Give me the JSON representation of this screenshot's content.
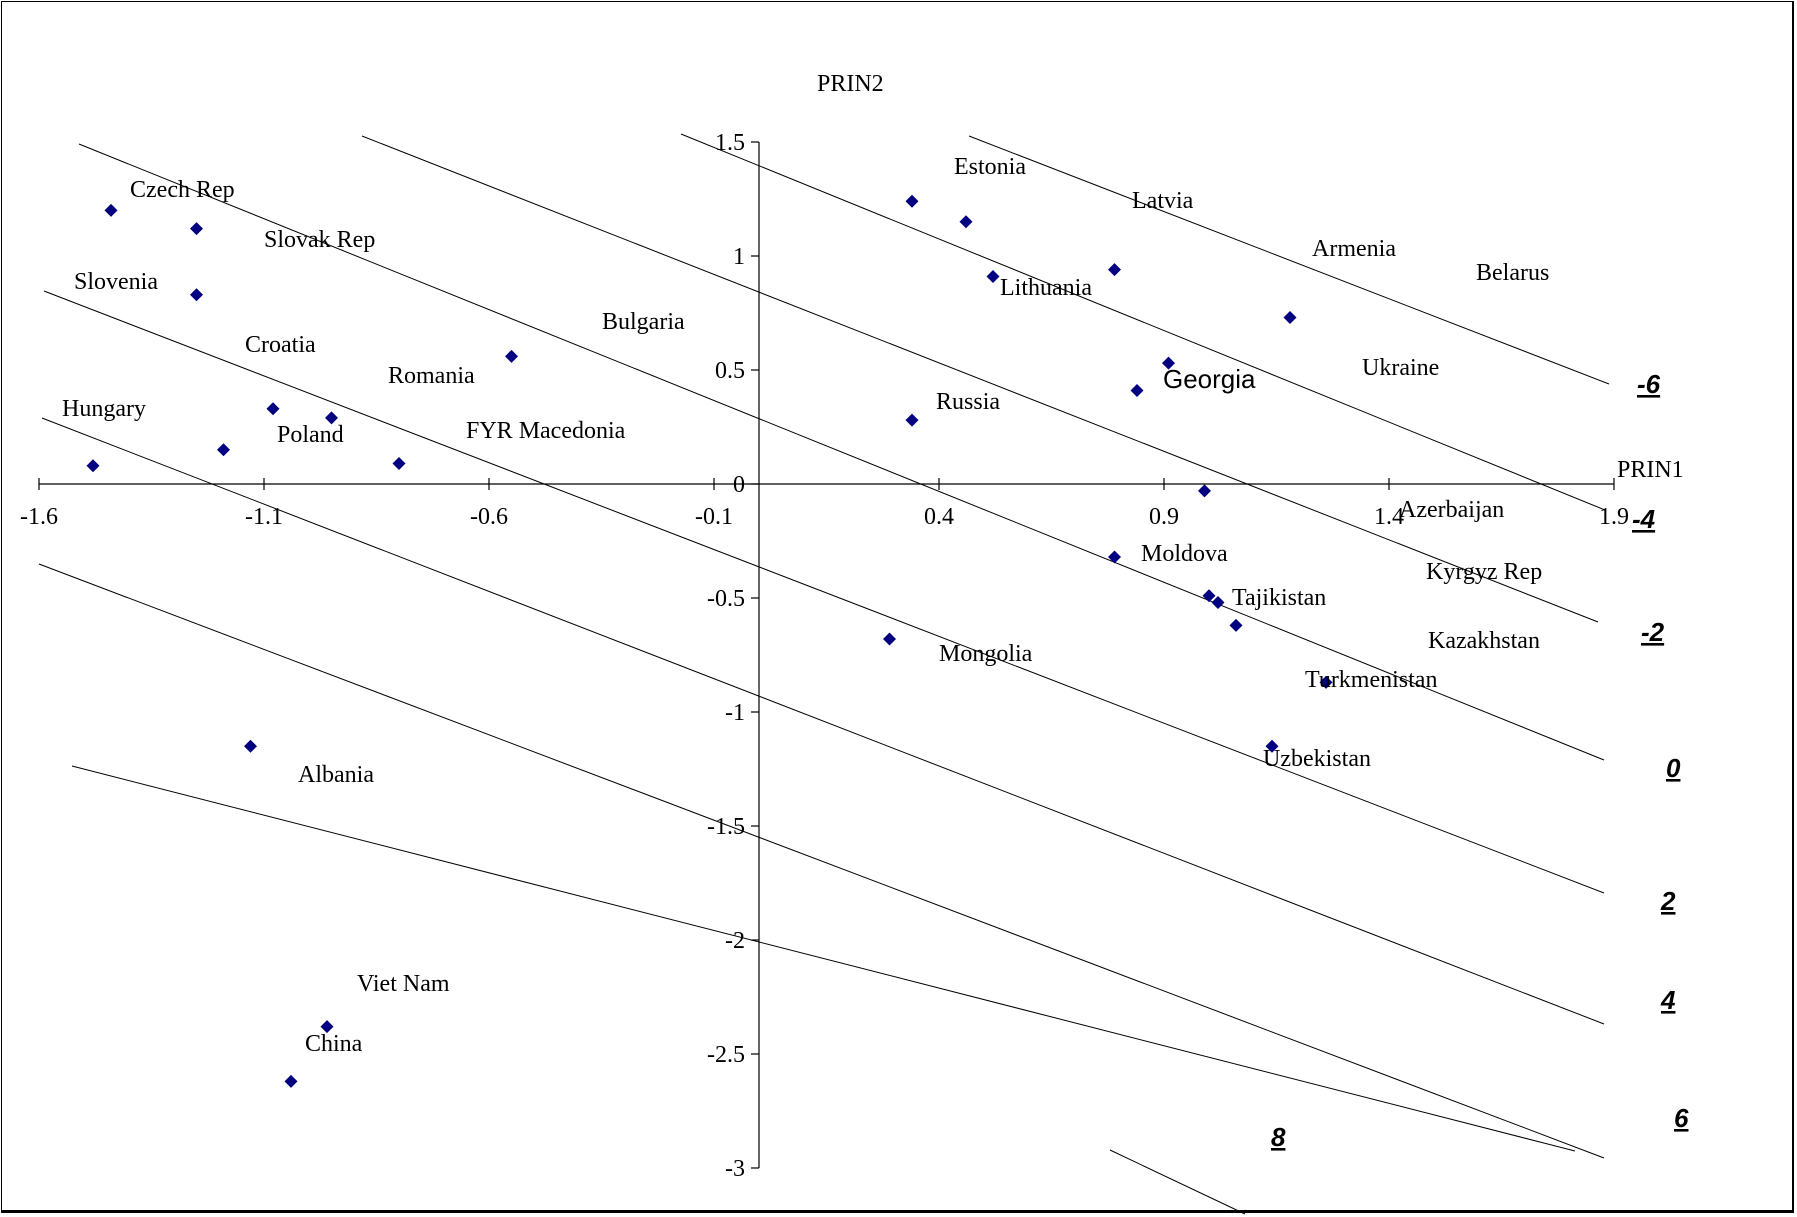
{
  "chart_data": {
    "type": "scatter",
    "x_axis_title": "PRIN1",
    "y_axis_title": "PRIN2",
    "xlim": [
      -1.6,
      1.9
    ],
    "ylim": [
      -3,
      1.5
    ],
    "x_ticks": [
      "-1.6",
      "-1.1",
      "-0.6",
      "-0.1",
      "0.4",
      "0.9",
      "1.4",
      "1.9"
    ],
    "y_ticks": [
      "1.5",
      "1",
      "0.5",
      "0",
      "-0.5",
      "-1",
      "-1.5",
      "-2",
      "-2.5",
      "-3"
    ],
    "marker_color": "#000080",
    "points": [
      {
        "label": "Czech Rep",
        "x": -1.44,
        "y": 1.2
      },
      {
        "label": "Slovak Rep",
        "x": -1.25,
        "y": 1.12
      },
      {
        "label": "Slovenia",
        "x": -1.25,
        "y": 0.83
      },
      {
        "label": "Croatia",
        "x": -1.08,
        "y": 0.33
      },
      {
        "label": "Hungary",
        "x": -1.48,
        "y": 0.08
      },
      {
        "label": "Poland",
        "x": -1.19,
        "y": 0.15
      },
      {
        "label": "Romania",
        "x": -0.95,
        "y": 0.29
      },
      {
        "label": "Bulgaria",
        "x": -0.55,
        "y": 0.56
      },
      {
        "label": "FYR Macedonia",
        "x": -0.8,
        "y": 0.09
      },
      {
        "label": "Estonia",
        "x": 0.34,
        "y": 1.24
      },
      {
        "label": "Latvia",
        "x": 0.46,
        "y": 1.15
      },
      {
        "label": "Lithuania",
        "x": 0.52,
        "y": 0.91
      },
      {
        "label": "Armenia",
        "x": 0.79,
        "y": 0.94
      },
      {
        "label": "Belarus",
        "x": 1.18,
        "y": 0.73
      },
      {
        "label": "Ukraine",
        "x": 0.91,
        "y": 0.53
      },
      {
        "label": "Georgia",
        "x": 0.84,
        "y": 0.41
      },
      {
        "label": "Russia",
        "x": 0.34,
        "y": 0.28
      },
      {
        "label": "Azerbaijan",
        "x": 0.99,
        "y": -0.03
      },
      {
        "label": "Moldova",
        "x": 0.79,
        "y": -0.32
      },
      {
        "label": "Kyrgyz Rep",
        "x": 1.0,
        "y": -0.49
      },
      {
        "label": "Tajikistan",
        "x": 1.02,
        "y": -0.52
      },
      {
        "label": "Kazakhstan",
        "x": 1.06,
        "y": -0.62
      },
      {
        "label": "Turkmenistan",
        "x": 1.26,
        "y": -0.87
      },
      {
        "label": "Uzbekistan",
        "x": 1.14,
        "y": -1.15
      },
      {
        "label": "Mongolia",
        "x": 0.29,
        "y": -0.68
      },
      {
        "label": "Albania",
        "x": -1.13,
        "y": -1.15
      },
      {
        "label": "Viet Nam",
        "x": -0.96,
        "y": -2.38
      },
      {
        "label": "China",
        "x": -1.04,
        "y": -2.62
      }
    ],
    "contour_labels": [
      "-6",
      "-4",
      "-2",
      "0",
      "2",
      "4",
      "6",
      "8"
    ]
  }
}
